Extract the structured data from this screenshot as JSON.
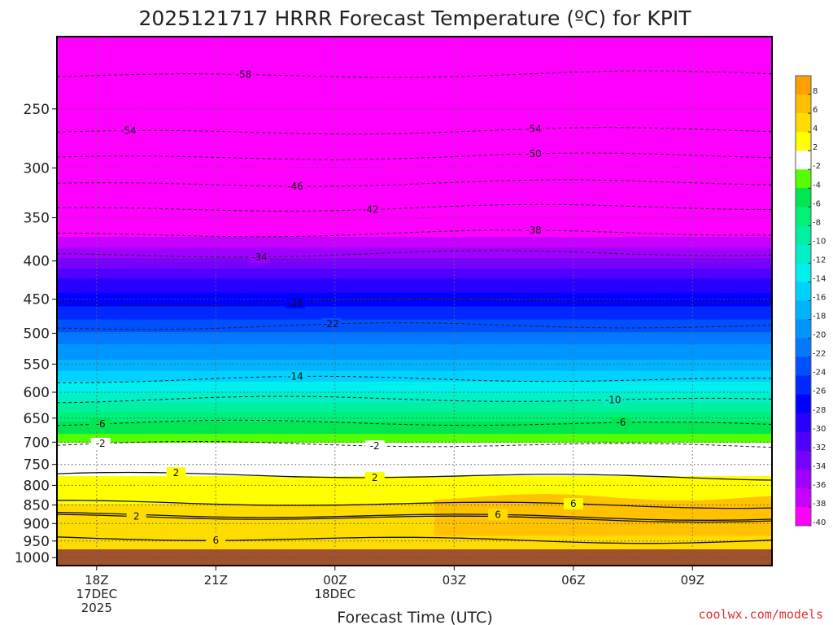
{
  "chart_data": {
    "type": "heatmap",
    "title": "2025121717 HRRR Forecast Temperature (ºC) for KPIT",
    "xlabel": "Forecast Time (UTC)",
    "ylabel": "",
    "credit": "coolwx.com/models",
    "x_ticks": [
      {
        "hour": 1,
        "label": "18Z",
        "sub1": "17DEC",
        "sub2": "2025"
      },
      {
        "hour": 4,
        "label": "21Z",
        "sub1": "",
        "sub2": ""
      },
      {
        "hour": 7,
        "label": "00Z",
        "sub1": "18DEC",
        "sub2": ""
      },
      {
        "hour": 10,
        "label": "03Z",
        "sub1": "",
        "sub2": ""
      },
      {
        "hour": 13,
        "label": "06Z",
        "sub1": "",
        "sub2": ""
      },
      {
        "hour": 16,
        "label": "09Z",
        "sub1": "",
        "sub2": ""
      }
    ],
    "xlim": [
      0,
      18
    ],
    "y_ticks": [
      250,
      300,
      350,
      400,
      450,
      500,
      550,
      600,
      650,
      700,
      750,
      800,
      850,
      900,
      950,
      1000
    ],
    "ylim": [
      1025,
      200
    ],
    "y_scale": "log",
    "grid": true,
    "colorbar": {
      "placement": "right",
      "labels": [
        "8",
        "6",
        "4",
        "2",
        "-2",
        "-4",
        "-6",
        "-8",
        "-10",
        "-12",
        "-14",
        "-16",
        "-18",
        "-20",
        "-22",
        "-24",
        "-26",
        "-28",
        "-30",
        "-32",
        "-34",
        "-36",
        "-38",
        "-40"
      ],
      "colors": [
        "#ffa000",
        "#ffbe00",
        "#ffdc00",
        "#ffff00",
        "#ffffff",
        "#55ff00",
        "#00e650",
        "#00f078",
        "#00f0a0",
        "#00f0c8",
        "#00f0f0",
        "#00d2ff",
        "#00b4ff",
        "#0096ff",
        "#0078ff",
        "#0050ff",
        "#0028ff",
        "#0000ff",
        "#2800ff",
        "#5000ff",
        "#7800ff",
        "#a000ff",
        "#c800ff",
        "#ff00ff"
      ]
    },
    "temperature_profile": [
      {
        "pressure": 200,
        "temp": -60
      },
      {
        "pressure": 250,
        "temp": -55
      },
      {
        "pressure": 300,
        "temp": -48
      },
      {
        "pressure": 350,
        "temp": -41
      },
      {
        "pressure": 400,
        "temp": -33
      },
      {
        "pressure": 450,
        "temp": -27
      },
      {
        "pressure": 500,
        "temp": -22
      },
      {
        "pressure": 550,
        "temp": -17
      },
      {
        "pressure": 600,
        "temp": -12
      },
      {
        "pressure": 650,
        "temp": -7
      },
      {
        "pressure": 700,
        "temp": -2
      },
      {
        "pressure": 750,
        "temp": 1
      },
      {
        "pressure": 800,
        "temp": 3
      },
      {
        "pressure": 850,
        "temp": 4
      },
      {
        "pressure": 900,
        "temp": 4
      },
      {
        "pressure": 950,
        "temp": 5
      },
      {
        "pressure": 975,
        "temp": 6
      }
    ],
    "ground_pressure": 975,
    "warm_region": {
      "label": "6",
      "hour_start": 9.5,
      "hour_end": 18,
      "pressure_top": 830,
      "pressure_bottom": 935
    },
    "contours": [
      {
        "value": -58,
        "pressure": 225,
        "label_hour": 4.7
      },
      {
        "value": -54,
        "pressure": 268,
        "label_hour": 1.8
      },
      {
        "value": -54,
        "pressure": 268,
        "label_hour": 12.0
      },
      {
        "value": -50,
        "pressure": 290,
        "label_hour": 12.0
      },
      {
        "value": -46,
        "pressure": 315,
        "label_hour": 6.0
      },
      {
        "value": -42,
        "pressure": 340,
        "label_hour": 7.9
      },
      {
        "value": -38,
        "pressure": 368,
        "label_hour": 12.0
      },
      {
        "value": -34,
        "pressure": 392,
        "label_hour": 5.1
      },
      {
        "value": -26,
        "pressure": 455,
        "label_hour": 6.0
      },
      {
        "value": -22,
        "pressure": 490,
        "label_hour": 6.9
      },
      {
        "value": -14,
        "pressure": 578,
        "label_hour": 6.0
      },
      {
        "value": -10,
        "pressure": 615,
        "label_hour": 14.0
      },
      {
        "value": -6,
        "pressure": 662,
        "label_hour": 1.1
      },
      {
        "value": -6,
        "pressure": 662,
        "label_hour": 14.2
      },
      {
        "value": -2,
        "pressure": 707,
        "label_hour": 1.1
      },
      {
        "value": -2,
        "pressure": 707,
        "label_hour": 8.0
      },
      {
        "value": 2,
        "pressure": 778,
        "label_hour": 3.0
      },
      {
        "value": 2,
        "pressure": 778,
        "label_hour": 8.0
      },
      {
        "value": 2,
        "pressure": 885,
        "label_hour": 2.0
      },
      {
        "value": 6,
        "pressure": 848,
        "label_hour": 13.0
      },
      {
        "value": 6,
        "pressure": 880,
        "label_hour": 11.1
      },
      {
        "value": 6,
        "pressure": 945,
        "label_hour": 4.0
      }
    ]
  }
}
